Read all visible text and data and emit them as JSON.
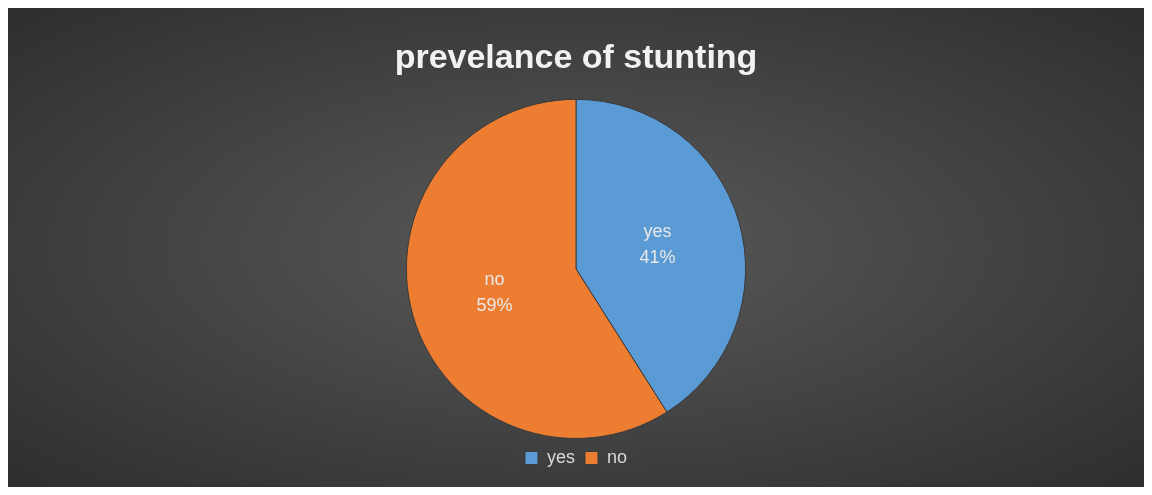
{
  "chart_data": {
    "type": "pie",
    "title": "prevelance of stunting",
    "categories": [
      "yes",
      "no"
    ],
    "values": [
      41,
      59
    ],
    "colors": [
      "#5b9bd5",
      "#ed7d31"
    ],
    "value_labels": [
      "41%",
      "59%"
    ],
    "legend": "bottom"
  }
}
